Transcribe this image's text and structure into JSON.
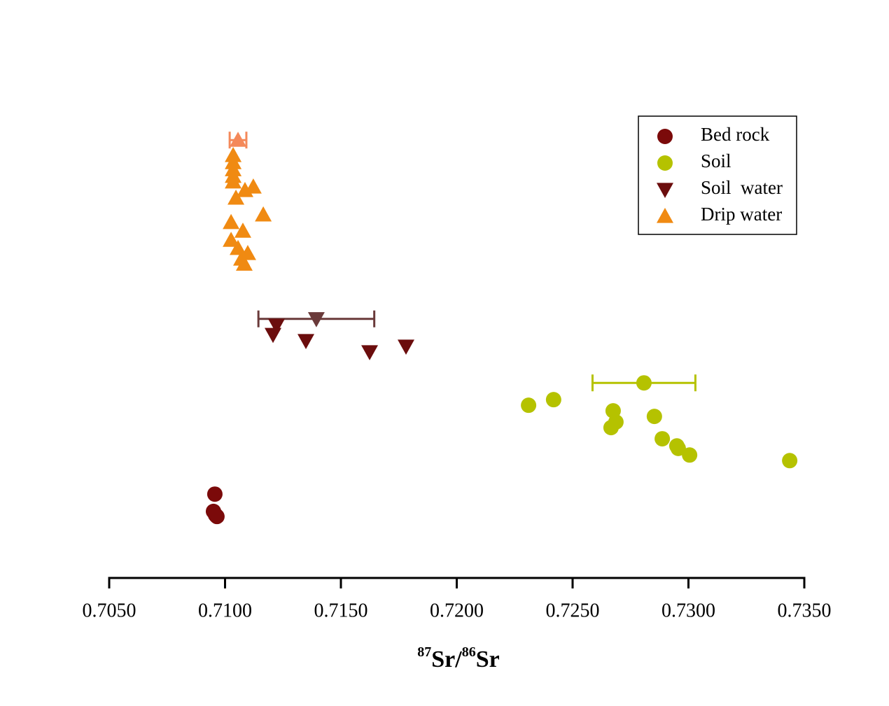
{
  "chart_data": {
    "type": "scatter",
    "x_label": [
      "87",
      "Sr/",
      "86",
      "Sr"
    ],
    "xlim": [
      0.705,
      0.735
    ],
    "ylim": [
      0,
      100
    ],
    "xticks": [
      {
        "value": 0.705,
        "label": "0.7050"
      },
      {
        "value": 0.71,
        "label": "0.7100"
      },
      {
        "value": 0.715,
        "label": "0.7150"
      },
      {
        "value": 0.72,
        "label": "0.7200"
      },
      {
        "value": 0.725,
        "label": "0.7250"
      },
      {
        "value": 0.73,
        "label": "0.7300"
      },
      {
        "value": 0.735,
        "label": "0.7350"
      }
    ],
    "legend": "upper right",
    "series": [
      {
        "name": "Bed rock",
        "marker": "circle",
        "color": "#7b0a0a",
        "x": [
          0.70956,
          0.7095,
          0.70965,
          0.70959
        ],
        "y": [
          16.5,
          13.1,
          12.1,
          12.4
        ]
      },
      {
        "name": "Soil",
        "marker": "circle",
        "color": "#b5c200",
        "x": [
          0.7231,
          0.72418,
          0.72675,
          0.72687,
          0.72666,
          0.72853,
          0.72887,
          0.7295,
          0.72956,
          0.73005,
          0.73437
        ],
        "y": [
          34.0,
          35.1,
          32.9,
          30.7,
          29.6,
          31.8,
          27.4,
          26.0,
          25.5,
          24.2,
          23.1
        ],
        "mean": {
          "x": 0.72808,
          "y": 38.4,
          "xerr": 0.00222,
          "color": "#b5c200"
        }
      },
      {
        "name": "Soil  water",
        "marker": "triangle-down",
        "color": "#6b0d0d",
        "x": [
          0.71222,
          0.71207,
          0.71349,
          0.71624,
          0.71781
        ],
        "y": [
          49.7,
          47.9,
          46.7,
          44.5,
          45.6
        ],
        "mean": {
          "x": 0.71394,
          "y": 51.0,
          "xerr": 0.0025,
          "color": "#6a3a3a"
        }
      },
      {
        "name": "Drip water",
        "marker": "triangle-up",
        "color": "#f08a12",
        "x": [
          0.71035,
          0.71035,
          0.71035,
          0.71035,
          0.71035,
          0.71086,
          0.71122,
          0.71047,
          0.71165,
          0.71026,
          0.71077,
          0.71026,
          0.71056,
          0.71098,
          0.71071,
          0.71083
        ],
        "y": [
          83.2,
          81.8,
          80.4,
          79.1,
          78.0,
          76.3,
          77.0,
          74.8,
          71.5,
          70.0,
          68.3,
          66.5,
          64.9,
          63.9,
          62.8,
          61.8
        ],
        "mean": {
          "x": 0.71056,
          "y": 86.2,
          "xerr": 0.00036,
          "color": "#f4895a"
        }
      }
    ]
  }
}
